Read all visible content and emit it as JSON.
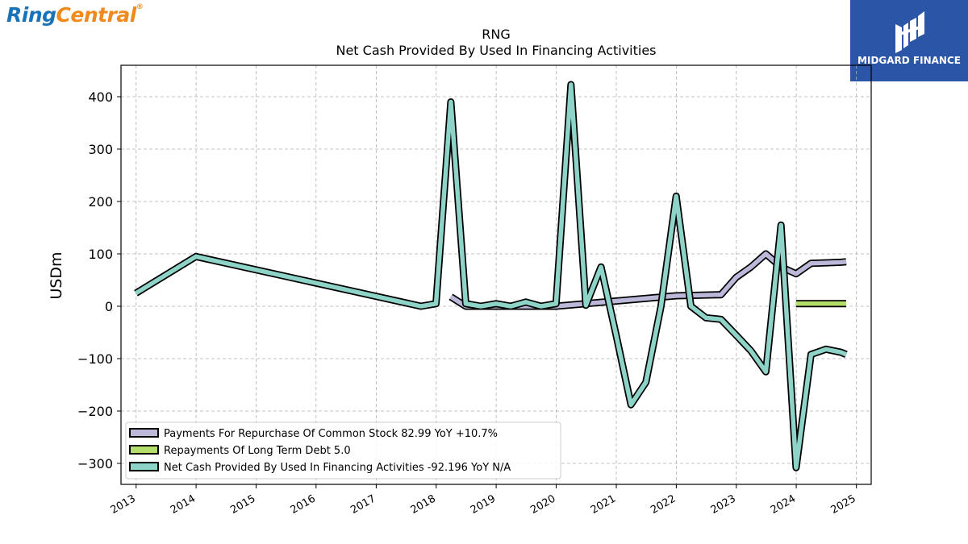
{
  "brand": {
    "left_logo_part1": "Ring",
    "left_logo_part2": "Central",
    "right_logo_name": "MIDGARD FINANCE"
  },
  "chart_data": {
    "type": "line",
    "title": "RNG",
    "subtitle": "Net Cash Provided By Used In Financing Activities",
    "ylabel": "USDm",
    "xlabel": "",
    "xlim": [
      "2012-10-01",
      "2025-04-01"
    ],
    "ylim": [
      -340,
      460
    ],
    "yticks": [
      400,
      300,
      200,
      100,
      0,
      -100,
      -200,
      -300
    ],
    "ytick_labels": [
      "400",
      "300",
      "200",
      "100",
      "0",
      "−100",
      "−200",
      "−300"
    ],
    "xticks": [
      "2013",
      "2014",
      "2015",
      "2016",
      "2017",
      "2018",
      "2019",
      "2020",
      "2021",
      "2022",
      "2023",
      "2024",
      "2025"
    ],
    "grid": true,
    "legend_position": "lower-left",
    "series": [
      {
        "name": "Payments For Repurchase Of Common Stock",
        "legend_label": "Payments For Repurchase Of Common Stock  82.99 YoY +10.7%",
        "color": "#bcb8d9",
        "points": [
          [
            "2018-03-31",
            18
          ],
          [
            "2018-06-30",
            0
          ],
          [
            "2018-09-30",
            0
          ],
          [
            "2018-12-31",
            0
          ],
          [
            "2019-03-31",
            0
          ],
          [
            "2019-06-30",
            0
          ],
          [
            "2019-09-30",
            0
          ],
          [
            "2019-12-31",
            0
          ],
          [
            "2020-12-31",
            10
          ],
          [
            "2021-12-31",
            20
          ],
          [
            "2022-09-30",
            22
          ],
          [
            "2022-12-31",
            55
          ],
          [
            "2023-03-31",
            75
          ],
          [
            "2023-06-30",
            100
          ],
          [
            "2023-09-30",
            75
          ],
          [
            "2023-12-31",
            62
          ],
          [
            "2024-03-31",
            82
          ],
          [
            "2024-06-30",
            83
          ],
          [
            "2024-09-30",
            84
          ],
          [
            "2024-10-31",
            85
          ]
        ]
      },
      {
        "name": "Repayments Of Long Term Debt",
        "legend_label": "Repayments Of Long Term Debt  5.0",
        "color": "#b3de69",
        "points": [
          [
            "2023-12-31",
            5
          ],
          [
            "2024-10-31",
            5
          ]
        ]
      },
      {
        "name": "Net Cash Provided By Used In Financing Activities",
        "legend_label": "Net Cash Provided By Used In Financing Activities  -92.196 YoY N/A",
        "color": "#8dd3c7",
        "points": [
          [
            "2012-12-31",
            25
          ],
          [
            "2013-12-31",
            95
          ],
          [
            "2017-09-30",
            0
          ],
          [
            "2017-12-31",
            5
          ],
          [
            "2018-03-31",
            390
          ],
          [
            "2018-06-30",
            5
          ],
          [
            "2018-09-30",
            0
          ],
          [
            "2018-12-31",
            5
          ],
          [
            "2019-03-31",
            0
          ],
          [
            "2019-06-30",
            8
          ],
          [
            "2019-09-30",
            0
          ],
          [
            "2019-12-31",
            5
          ],
          [
            "2020-03-31",
            423
          ],
          [
            "2020-06-30",
            2
          ],
          [
            "2020-09-30",
            75
          ],
          [
            "2020-12-31",
            -55
          ],
          [
            "2021-03-31",
            -188
          ],
          [
            "2021-06-30",
            -145
          ],
          [
            "2021-09-30",
            0
          ],
          [
            "2021-12-31",
            210
          ],
          [
            "2022-03-31",
            0
          ],
          [
            "2022-06-30",
            -22
          ],
          [
            "2022-09-30",
            -25
          ],
          [
            "2022-12-31",
            -55
          ],
          [
            "2023-03-31",
            -85
          ],
          [
            "2023-06-30",
            -125
          ],
          [
            "2023-09-30",
            155
          ],
          [
            "2023-12-31",
            -308
          ],
          [
            "2024-03-31",
            -92
          ],
          [
            "2024-06-30",
            -82
          ],
          [
            "2024-09-30",
            -88
          ],
          [
            "2024-10-31",
            -92
          ]
        ]
      }
    ]
  }
}
